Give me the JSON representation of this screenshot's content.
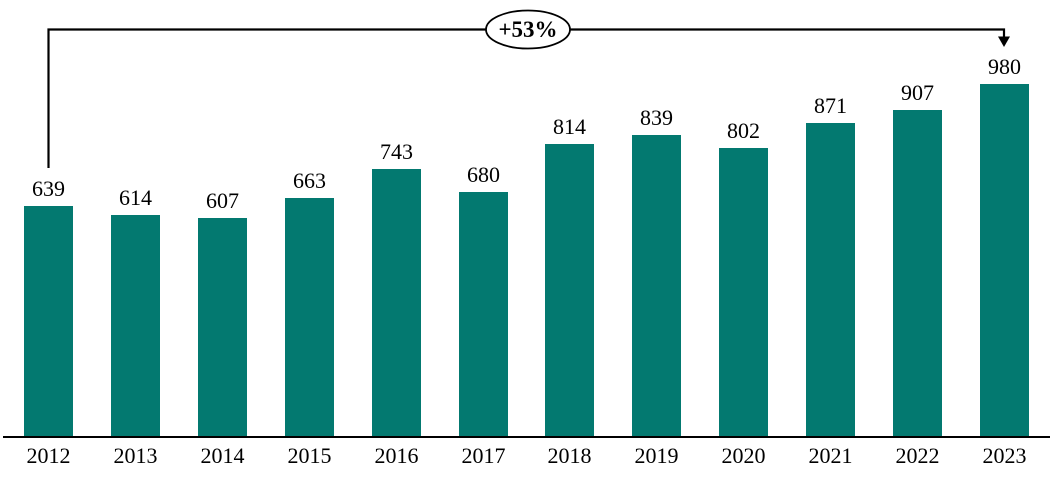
{
  "chart_data": {
    "type": "bar",
    "categories": [
      "2012",
      "2013",
      "2014",
      "2015",
      "2016",
      "2017",
      "2018",
      "2019",
      "2020",
      "2021",
      "2022",
      "2023"
    ],
    "values": [
      639,
      614,
      607,
      663,
      743,
      680,
      814,
      839,
      802,
      871,
      907,
      980
    ],
    "title": "",
    "xlabel": "",
    "ylabel": "",
    "ylim": [
      0,
      980
    ],
    "grid": false,
    "legend": false,
    "bar_color": "#037970",
    "axis_color": "#000000",
    "annotation": {
      "label": "+53%",
      "from_category": "2012",
      "to_category": "2023"
    }
  }
}
